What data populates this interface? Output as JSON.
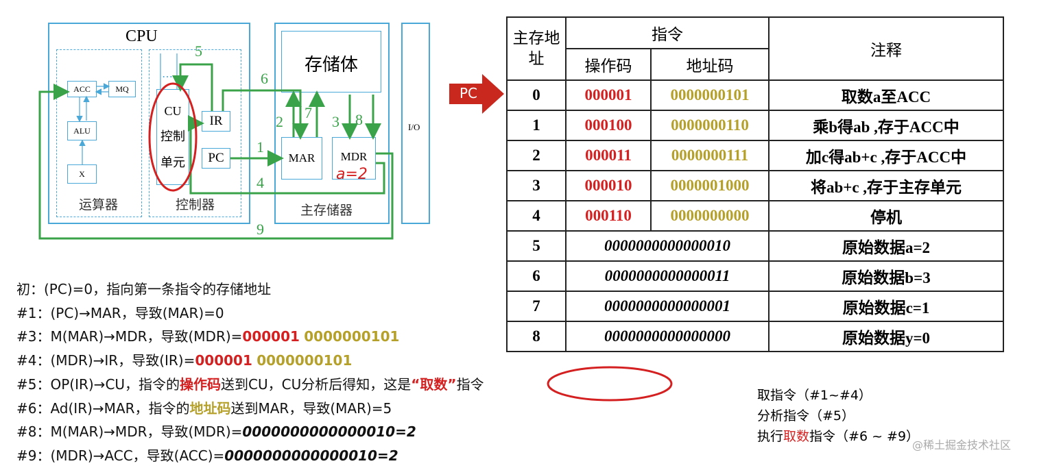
{
  "diagram": {
    "cpu": "CPU",
    "acc": "ACC",
    "mq": "MQ",
    "alu": "ALU",
    "x": "X",
    "alu_group": "运算器",
    "cu": [
      "CU",
      "控制",
      "单元"
    ],
    "ellipsis": "…",
    "ir": "IR",
    "pc": "PC",
    "control_group": "控制器",
    "storage": "存储体",
    "mar": "MAR",
    "mdr": "MDR",
    "memory_group": "主存储器",
    "io": "I/O",
    "handwritten_note": "a=2",
    "steps": [
      "1",
      "2",
      "3",
      "4",
      "5",
      "6",
      "7",
      "8",
      "9"
    ],
    "wire_color": "#3aa34a",
    "box_color": "#4aa8d8"
  },
  "pc_pointer": {
    "label": "PC",
    "color": "#c8281e"
  },
  "table": {
    "headers": {
      "addr": "主存地址",
      "instr": "指令",
      "opcode": "操作码",
      "address": "地址码",
      "comment": "注释"
    },
    "rows": [
      {
        "addr": "0",
        "op": "000001",
        "ad": "0000000101",
        "note": "取数a至ACC"
      },
      {
        "addr": "1",
        "op": "000100",
        "ad": "0000000110",
        "note": "乘b得ab ,存于ACC中"
      },
      {
        "addr": "2",
        "op": "000011",
        "ad": "0000000111",
        "note": "加c得ab+c ,存于ACC中"
      },
      {
        "addr": "3",
        "op": "000010",
        "ad": "0000001000",
        "note": "将ab+c ,存于主存单元"
      },
      {
        "addr": "4",
        "op": "000110",
        "ad": "0000000000",
        "note": "停机"
      }
    ],
    "data_rows": [
      {
        "addr": "5",
        "value": "0000000000000010",
        "note": "原始数据a=2"
      },
      {
        "addr": "6",
        "value": "0000000000000011",
        "note": "原始数据b=3"
      },
      {
        "addr": "7",
        "value": "0000000000000001",
        "note": "原始数据c=1"
      },
      {
        "addr": "8",
        "value": "0000000000000000",
        "note": "原始数据y=0"
      }
    ]
  },
  "steps": [
    {
      "parts": [
        {
          "t": "初：(PC)=0，指向第一条指令的存储地址"
        }
      ]
    },
    {
      "parts": [
        {
          "t": "#1：(PC)→MAR，导致(MAR)=0"
        }
      ]
    },
    {
      "parts": [
        {
          "t": "#3：M(MAR)→MDR，导致(MDR)="
        },
        {
          "t": "000001",
          "c": "r"
        },
        {
          "t": " "
        },
        {
          "t": "0000000101",
          "c": "o"
        }
      ]
    },
    {
      "parts": [
        {
          "t": "#4：(MDR)→IR，导致(IR)="
        },
        {
          "t": "000001",
          "c": "r"
        },
        {
          "t": " "
        },
        {
          "t": "0000000101",
          "c": "o"
        }
      ]
    },
    {
      "parts": [
        {
          "t": "#5：OP(IR)→CU，指令的"
        },
        {
          "t": "操作码",
          "c": "r"
        },
        {
          "t": "送到CU，CU分析后得知，这是"
        },
        {
          "t": "“取数”",
          "c": "r"
        },
        {
          "t": "指令"
        }
      ]
    },
    {
      "parts": [
        {
          "t": "#6：Ad(IR)→MAR，指令的"
        },
        {
          "t": "地址码",
          "c": "o"
        },
        {
          "t": "送到MAR，导致(MAR)=5"
        }
      ]
    },
    {
      "parts": [
        {
          "t": "#8：M(MAR)→MDR，导致(MDR)="
        },
        {
          "t": "0000000000000010=2",
          "c": "i"
        }
      ]
    },
    {
      "parts": [
        {
          "t": "#9：(MDR)→ACC，导致(ACC)="
        },
        {
          "t": "0000000000000010=2",
          "c": "i"
        }
      ]
    }
  ],
  "summary": {
    "fetch": "取指令（#1~#4）",
    "analyze": "分析指令（#5）",
    "exec_pre": "执行",
    "exec_red": "取数",
    "exec_post": "指令（#6 ~ #9）"
  },
  "watermark": "@稀土掘金技术社区"
}
